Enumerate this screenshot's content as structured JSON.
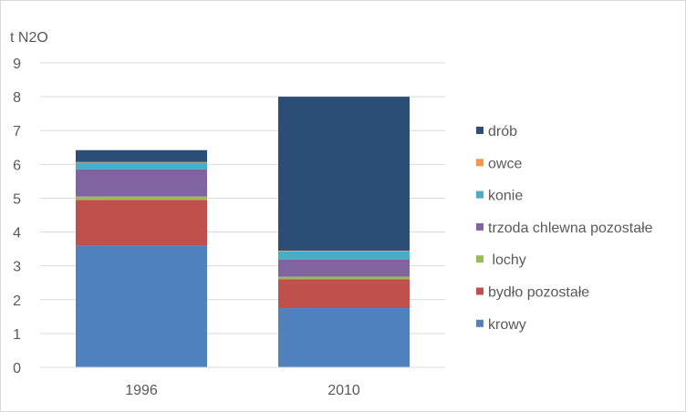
{
  "chart_data": {
    "type": "bar",
    "stacked": true,
    "ylabel": "t N2O",
    "xlabel": "",
    "ylim": [
      0,
      9
    ],
    "yticks": [
      0,
      1,
      2,
      3,
      4,
      5,
      6,
      7,
      8,
      9
    ],
    "grid": true,
    "legend_position": "right",
    "categories": [
      "1996",
      "2010"
    ],
    "series": [
      {
        "name": "krowy",
        "color": "#4f81bd",
        "values": [
          3.6,
          1.75
        ]
      },
      {
        "name": "bydło pozostałe",
        "color": "#c0504d",
        "values": [
          1.35,
          0.85
        ]
      },
      {
        "name": " lochy",
        "color": "#9bbb59",
        "values": [
          0.1,
          0.08
        ]
      },
      {
        "name": "trzoda chlewna pozostałe",
        "color": "#8064a2",
        "values": [
          0.8,
          0.5
        ]
      },
      {
        "name": "konie",
        "color": "#4bacc6",
        "values": [
          0.2,
          0.25
        ]
      },
      {
        "name": "owce",
        "color": "#f79646",
        "values": [
          0.02,
          0.02
        ]
      },
      {
        "name": "drób",
        "color": "#2c4d75",
        "values": [
          0.35,
          4.55
        ]
      }
    ]
  }
}
